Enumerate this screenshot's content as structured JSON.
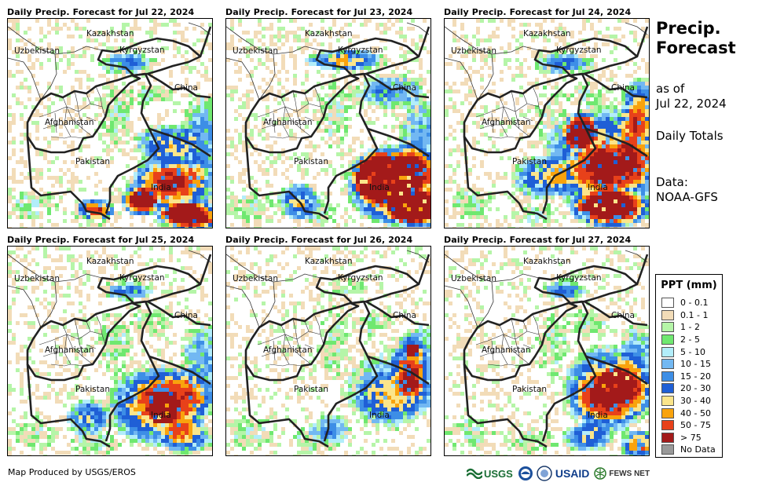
{
  "panels": [
    {
      "title": "Daily Precip. Forecast for Jul 22, 2024"
    },
    {
      "title": "Daily Precip. Forecast for Jul 23, 2024"
    },
    {
      "title": "Daily Precip. Forecast for Jul 24, 2024"
    },
    {
      "title": "Daily Precip. Forecast for Jul 25, 2024"
    },
    {
      "title": "Daily Precip. Forecast for Jul 26, 2024"
    },
    {
      "title": "Daily Precip. Forecast for Jul 27, 2024"
    }
  ],
  "map_labels": {
    "kazakhstan": "Kazakhstan",
    "uzbekistan": "Uzbekistan",
    "kyrgyzstan": "Kyrgyzstan",
    "china": "China",
    "afghanistan": "Afghanistan",
    "pakistan": "Pakistan",
    "india": "India"
  },
  "side": {
    "heading_line1": "Precip.",
    "heading_line2": "Forecast",
    "asof_line1": "as of",
    "asof_line2": "Jul 22, 2024",
    "totals": "Daily Totals",
    "data_line1": "Data:",
    "data_line2": "NOAA-GFS"
  },
  "legend": {
    "title": "PPT (mm)",
    "items": [
      {
        "label": "0 - 0.1",
        "color": "#ffffff"
      },
      {
        "label": "0.1 - 1",
        "color": "#f2dcb8"
      },
      {
        "label": "1 - 2",
        "color": "#b5f5a8"
      },
      {
        "label": "2 - 5",
        "color": "#6fe870"
      },
      {
        "label": "5 - 10",
        "color": "#b2edfa"
      },
      {
        "label": "10 - 15",
        "color": "#72b8f2"
      },
      {
        "label": "15 - 20",
        "color": "#3d8ee6"
      },
      {
        "label": "20 - 30",
        "color": "#1f5fd6"
      },
      {
        "label": "30 - 40",
        "color": "#fbe58a"
      },
      {
        "label": "40 - 50",
        "color": "#f9a30d"
      },
      {
        "label": "50 - 75",
        "color": "#e8411a"
      },
      {
        "label": "> 75",
        "color": "#a31a1a"
      },
      {
        "label": "No Data",
        "color": "#999999"
      }
    ]
  },
  "footer": {
    "credit": "Map Produced by USGS/EROS"
  },
  "logos": {
    "usgs": "USGS",
    "usaid": "USAID",
    "fews": "FEWS NET"
  }
}
